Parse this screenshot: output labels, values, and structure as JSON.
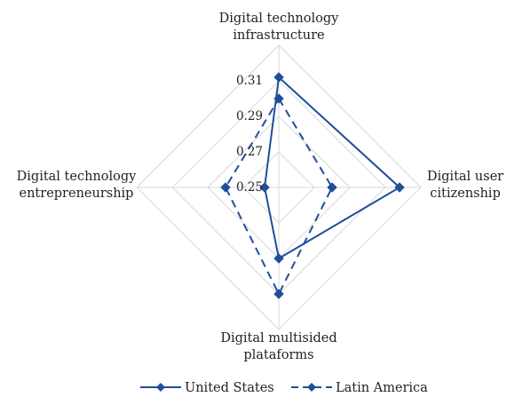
{
  "chart_data": {
    "type": "radar",
    "axes": [
      "Digital technology infrastructure",
      "Digital user citizenship",
      "Digital multisided plataforms",
      "Digital technology entrepreneurship"
    ],
    "axis_label_lines": [
      [
        "Digital technology",
        "infrastructure"
      ],
      [
        "Digital user",
        "citizenship"
      ],
      [
        "Digital multisided",
        "plataforms"
      ],
      [
        "Digital technology",
        "entrepreneurship"
      ]
    ],
    "range": [
      0.25,
      0.31
    ],
    "ticks": [
      "0.25",
      "0.27",
      "0.29",
      "0.31"
    ],
    "tick_values": [
      0.25,
      0.27,
      0.29,
      0.31
    ],
    "grid_values": [
      0.25,
      0.27,
      0.29,
      0.31,
      0.33
    ],
    "series": [
      {
        "name": "United States",
        "values": [
          0.312,
          0.318,
          0.29,
          0.258
        ],
        "color": "#1f4e9c",
        "dash": false
      },
      {
        "name": "Latin America",
        "values": [
          0.3,
          0.28,
          0.31,
          0.28
        ],
        "color": "#1f4e9c",
        "dash": true
      }
    ],
    "grid": true,
    "legend_position": "bottom"
  }
}
